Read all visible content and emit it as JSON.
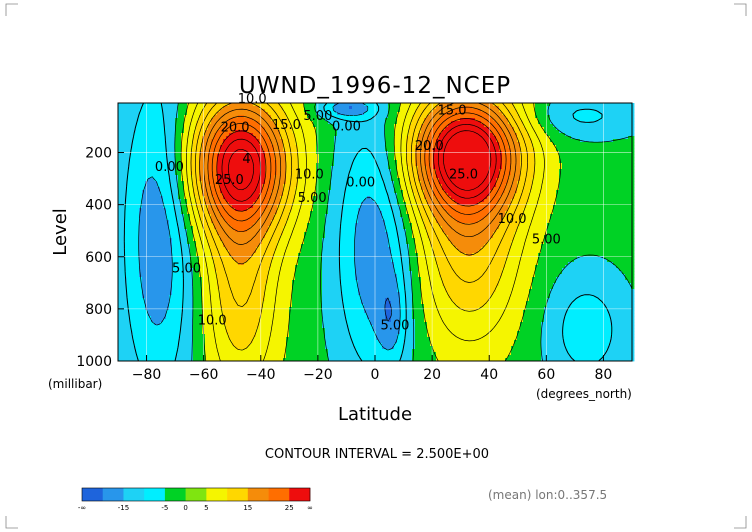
{
  "chart_data": {
    "type": "heatmap",
    "subtype": "filled-contour",
    "title": "UWND_1996-12_NCEP",
    "xlabel": "Latitude",
    "ylabel": "Level",
    "x_unit_label": "(degrees_north)",
    "y_unit_label": "(millibar)",
    "xlim": [
      -90,
      90
    ],
    "ylim": [
      1000,
      10
    ],
    "x_ticks": [
      -80,
      -60,
      -40,
      -20,
      0,
      20,
      40,
      60,
      80
    ],
    "y_ticks": [
      200,
      400,
      600,
      800,
      1000
    ],
    "x_tick_labels": [
      "−80",
      "−60",
      "−40",
      "−20",
      "0",
      "20",
      "40",
      "60",
      "80"
    ],
    "y_tick_labels": [
      "200",
      "400",
      "600",
      "800",
      "1000"
    ],
    "grid": true,
    "contour_interval_text": "CONTOUR INTERVAL = 2.500E+00",
    "footnote": "(mean) lon:0..357.5",
    "colorbar": {
      "colors": [
        "#1e64dc",
        "#2896eb",
        "#1ed2f5",
        "#00eeff",
        "#00d225",
        "#7fe510",
        "#f5f500",
        "#ffd700",
        "#f58c0a",
        "#ff6e00",
        "#ee0d0d"
      ],
      "tick_labels": [
        "-∞",
        "-15",
        "-5",
        "0",
        "5",
        "15",
        "25",
        "∞"
      ]
    },
    "contour_labels": [
      {
        "text": "10.0",
        "lat": -43,
        "p": 10
      },
      {
        "text": "20.0",
        "lat": -49,
        "p": 120
      },
      {
        "text": "15.0",
        "lat": -31,
        "p": 110
      },
      {
        "text": "5.00",
        "lat": -20,
        "p": 75
      },
      {
        "text": "0.00",
        "lat": -10,
        "p": 115
      },
      {
        "text": "4",
        "lat": -45,
        "p": 240
      },
      {
        "text": "25.0",
        "lat": -51,
        "p": 320
      },
      {
        "text": "10.0",
        "lat": -23,
        "p": 300
      },
      {
        "text": "5.00",
        "lat": -22,
        "p": 390
      },
      {
        "text": "0.00",
        "lat": -72,
        "p": 270
      },
      {
        "text": "0.00",
        "lat": -5,
        "p": 330
      },
      {
        "text": "5.00",
        "lat": -66,
        "p": 660
      },
      {
        "text": "10.0",
        "lat": -57,
        "p": 860
      },
      {
        "text": "15.0",
        "lat": 27,
        "p": 55
      },
      {
        "text": "20.0",
        "lat": 19,
        "p": 190
      },
      {
        "text": "25.0",
        "lat": 31,
        "p": 300
      },
      {
        "text": "10.0",
        "lat": 48,
        "p": 470
      },
      {
        "text": "5.00",
        "lat": 60,
        "p": 550
      },
      {
        "text": "5.00",
        "lat": 7,
        "p": 880
      }
    ]
  }
}
